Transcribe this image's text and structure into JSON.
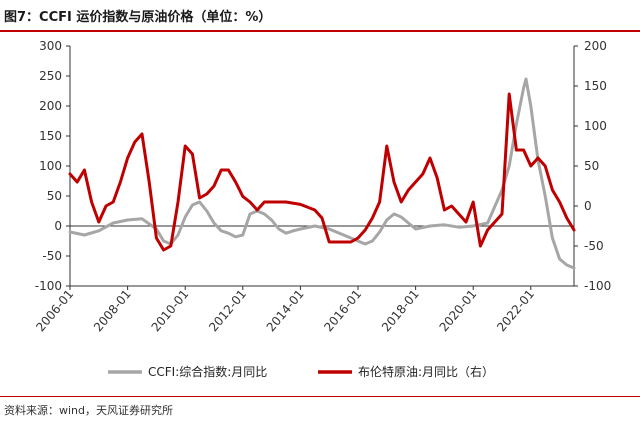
{
  "figure_title": "图7：CCFI 运价指数与原油价格（单位：%）",
  "source_note": "资料来源：wind，天风证券研究所",
  "colors": {
    "ccfi": "#a6a6a6",
    "brent": "#c00000",
    "axis": "#333333",
    "rule": "#c00000"
  },
  "chart_data": {
    "type": "line",
    "title": "图7：CCFI 运价指数与原油价格（单位：%）",
    "x_ticks": [
      "2006-01",
      "2008-01",
      "2010-01",
      "2012-01",
      "2014-01",
      "2016-01",
      "2018-01",
      "2020-01",
      "2022-01"
    ],
    "x_range": [
      "2006-01",
      "2023-07"
    ],
    "y_left": {
      "range": [
        -100,
        300
      ],
      "ticks": [
        -100,
        -50,
        0,
        50,
        100,
        150,
        200,
        250,
        300
      ]
    },
    "y_right": {
      "range": [
        -100,
        200
      ],
      "ticks": [
        -100,
        -50,
        0,
        50,
        100,
        150,
        200
      ]
    },
    "grid": false,
    "legend_position": "bottom",
    "series": [
      {
        "name": "CCFI:综合指数:月同比",
        "axis": "left",
        "color": "#a6a6a6",
        "points": [
          [
            "2006-01",
            -10
          ],
          [
            "2006-07",
            -15
          ],
          [
            "2007-01",
            -8
          ],
          [
            "2007-07",
            5
          ],
          [
            "2008-01",
            10
          ],
          [
            "2008-07",
            12
          ],
          [
            "2009-01",
            -5
          ],
          [
            "2009-04",
            -25
          ],
          [
            "2009-07",
            -30
          ],
          [
            "2009-10",
            -15
          ],
          [
            "2010-01",
            15
          ],
          [
            "2010-04",
            35
          ],
          [
            "2010-07",
            40
          ],
          [
            "2010-10",
            25
          ],
          [
            "2011-01",
            5
          ],
          [
            "2011-04",
            -8
          ],
          [
            "2011-07",
            -12
          ],
          [
            "2011-10",
            -18
          ],
          [
            "2012-01",
            -15
          ],
          [
            "2012-04",
            20
          ],
          [
            "2012-07",
            25
          ],
          [
            "2012-10",
            20
          ],
          [
            "2013-01",
            10
          ],
          [
            "2013-04",
            -5
          ],
          [
            "2013-07",
            -12
          ],
          [
            "2013-10",
            -8
          ],
          [
            "2014-01",
            -5
          ],
          [
            "2014-07",
            0
          ],
          [
            "2015-01",
            -5
          ],
          [
            "2015-07",
            -15
          ],
          [
            "2016-01",
            -25
          ],
          [
            "2016-04",
            -30
          ],
          [
            "2016-07",
            -25
          ],
          [
            "2016-10",
            -10
          ],
          [
            "2017-01",
            10
          ],
          [
            "2017-04",
            20
          ],
          [
            "2017-07",
            15
          ],
          [
            "2017-10",
            5
          ],
          [
            "2018-01",
            -5
          ],
          [
            "2018-07",
            0
          ],
          [
            "2019-01",
            2
          ],
          [
            "2019-07",
            -2
          ],
          [
            "2020-01",
            0
          ],
          [
            "2020-07",
            5
          ],
          [
            "2021-01",
            60
          ],
          [
            "2021-04",
            100
          ],
          [
            "2021-07",
            170
          ],
          [
            "2021-10",
            230
          ],
          [
            "2021-11",
            245
          ],
          [
            "2022-01",
            200
          ],
          [
            "2022-04",
            110
          ],
          [
            "2022-07",
            50
          ],
          [
            "2022-10",
            -20
          ],
          [
            "2023-01",
            -55
          ],
          [
            "2023-04",
            -65
          ],
          [
            "2023-07",
            -70
          ]
        ]
      },
      {
        "name": "布伦特原油:月同比（右）",
        "axis": "right",
        "color": "#c00000",
        "points": [
          [
            "2006-01",
            40
          ],
          [
            "2006-04",
            30
          ],
          [
            "2006-07",
            45
          ],
          [
            "2006-10",
            5
          ],
          [
            "2007-01",
            -20
          ],
          [
            "2007-04",
            0
          ],
          [
            "2007-07",
            5
          ],
          [
            "2007-10",
            30
          ],
          [
            "2008-01",
            60
          ],
          [
            "2008-04",
            80
          ],
          [
            "2008-07",
            90
          ],
          [
            "2008-10",
            30
          ],
          [
            "2009-01",
            -40
          ],
          [
            "2009-04",
            -55
          ],
          [
            "2009-07",
            -50
          ],
          [
            "2009-10",
            5
          ],
          [
            "2010-01",
            75
          ],
          [
            "2010-04",
            65
          ],
          [
            "2010-07",
            10
          ],
          [
            "2010-10",
            15
          ],
          [
            "2011-01",
            25
          ],
          [
            "2011-04",
            45
          ],
          [
            "2011-07",
            45
          ],
          [
            "2011-10",
            30
          ],
          [
            "2012-01",
            12
          ],
          [
            "2012-04",
            5
          ],
          [
            "2012-07",
            -5
          ],
          [
            "2012-10",
            5
          ],
          [
            "2013-01",
            5
          ],
          [
            "2013-07",
            5
          ],
          [
            "2014-01",
            2
          ],
          [
            "2014-07",
            -5
          ],
          [
            "2014-10",
            -15
          ],
          [
            "2015-01",
            -45
          ],
          [
            "2015-04",
            -45
          ],
          [
            "2015-07",
            -45
          ],
          [
            "2015-10",
            -45
          ],
          [
            "2016-01",
            -40
          ],
          [
            "2016-04",
            -30
          ],
          [
            "2016-07",
            -15
          ],
          [
            "2016-10",
            5
          ],
          [
            "2017-01",
            75
          ],
          [
            "2017-04",
            30
          ],
          [
            "2017-07",
            5
          ],
          [
            "2017-10",
            20
          ],
          [
            "2018-01",
            30
          ],
          [
            "2018-04",
            40
          ],
          [
            "2018-07",
            60
          ],
          [
            "2018-10",
            35
          ],
          [
            "2019-01",
            -5
          ],
          [
            "2019-04",
            0
          ],
          [
            "2019-07",
            -10
          ],
          [
            "2019-10",
            -20
          ],
          [
            "2020-01",
            5
          ],
          [
            "2020-04",
            -50
          ],
          [
            "2020-07",
            -30
          ],
          [
            "2020-10",
            -20
          ],
          [
            "2021-01",
            -10
          ],
          [
            "2021-04",
            140
          ],
          [
            "2021-07",
            70
          ],
          [
            "2021-10",
            70
          ],
          [
            "2022-01",
            50
          ],
          [
            "2022-04",
            60
          ],
          [
            "2022-07",
            50
          ],
          [
            "2022-10",
            20
          ],
          [
            "2023-01",
            5
          ],
          [
            "2023-04",
            -15
          ],
          [
            "2023-07",
            -30
          ]
        ]
      }
    ]
  },
  "legend": [
    {
      "label": "CCFI:综合指数:月同比",
      "color": "#a6a6a6"
    },
    {
      "label": "布伦特原油:月同比（右）",
      "color": "#c00000"
    }
  ]
}
